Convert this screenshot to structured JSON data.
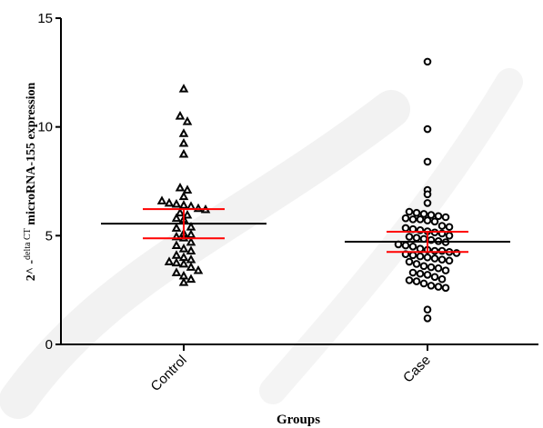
{
  "chart_data": {
    "type": "scatter",
    "subtype": "dot-plot-with-mean-and-sem",
    "xlabel": "Groups",
    "ylabel_prefix": "2^ -",
    "ylabel_superscript": "delta CT",
    "ylabel_suffix": "microRNA-155 expression",
    "ylim": [
      0,
      15
    ],
    "yticks": [
      0,
      5,
      10,
      15
    ],
    "categories": [
      "Control",
      "Case"
    ],
    "colors": {
      "points": "#000000",
      "mean_line": "#000000",
      "error_bars": "#ff0000",
      "watermark": "#e0e0e0"
    },
    "series": [
      {
        "category": "Control",
        "marker": "triangle",
        "mean": 5.55,
        "sem_upper": 6.22,
        "sem_lower": 4.88,
        "values": [
          11.75,
          10.5,
          10.25,
          9.7,
          9.25,
          8.75,
          7.2,
          7.1,
          6.8,
          6.6,
          6.5,
          6.45,
          6.4,
          6.35,
          6.25,
          6.2,
          6.05,
          5.95,
          5.8,
          5.75,
          5.4,
          5.35,
          5.1,
          5.05,
          4.95,
          4.9,
          4.7,
          4.55,
          4.4,
          4.3,
          4.1,
          4.0,
          3.9,
          3.8,
          3.75,
          3.7,
          3.55,
          3.4,
          3.3,
          3.15,
          3.0,
          2.85
        ]
      },
      {
        "category": "Case",
        "marker": "circle",
        "mean": 4.72,
        "sem_upper": 5.18,
        "sem_lower": 4.25,
        "values": [
          13.0,
          9.9,
          8.4,
          7.1,
          6.9,
          6.5,
          6.1,
          6.05,
          6.0,
          5.95,
          5.9,
          5.85,
          5.8,
          5.75,
          5.75,
          5.7,
          5.65,
          5.45,
          5.4,
          5.35,
          5.3,
          5.25,
          5.2,
          5.15,
          5.1,
          5.0,
          4.95,
          4.9,
          4.85,
          4.8,
          4.75,
          4.7,
          4.6,
          4.55,
          4.5,
          4.4,
          4.35,
          4.3,
          4.3,
          4.25,
          4.2,
          4.15,
          4.1,
          4.05,
          4.0,
          3.95,
          3.9,
          3.85,
          3.8,
          3.7,
          3.6,
          3.55,
          3.5,
          3.4,
          3.3,
          3.25,
          3.2,
          3.1,
          3.0,
          2.95,
          2.9,
          2.8,
          2.7,
          2.65,
          2.6,
          1.6,
          1.2
        ]
      }
    ]
  }
}
